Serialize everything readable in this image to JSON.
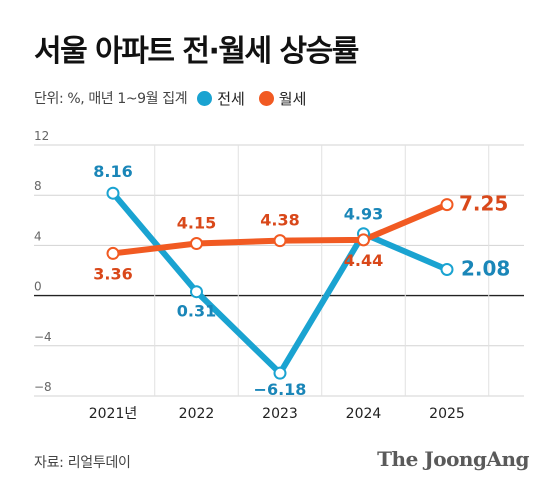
{
  "title": "서울 아파트 전·월세 상승률",
  "unit_note": "단위: %, 매년 1~9월 집계",
  "legend": [
    {
      "label": "전세",
      "color": "#1aa3d1"
    },
    {
      "label": "월세",
      "color": "#f15a22"
    }
  ],
  "source": "자료: 리얼투데이",
  "brand": "The JoongAng",
  "chart_data": {
    "type": "line",
    "title": "서울 아파트 전·월세 상승률",
    "categories": [
      "2021년",
      "2022",
      "2023",
      "2024",
      "2025"
    ],
    "y_ticks": [
      "12",
      "8",
      "4",
      "0",
      "−4",
      "−8"
    ],
    "ylim": [
      -8,
      12
    ],
    "grid": true,
    "legend_position": "top-left",
    "series": [
      {
        "name": "전세",
        "color": "#1aa3d1",
        "label_color": "#1a86b8",
        "values": [
          8.16,
          0.31,
          -6.18,
          4.93,
          2.08
        ],
        "labels": [
          "8.16",
          "0.31",
          "−6.18",
          "4.93",
          "2.08"
        ]
      },
      {
        "name": "월세",
        "color": "#f15a22",
        "label_color": "#d9481a",
        "values": [
          3.36,
          4.15,
          4.38,
          4.44,
          7.25
        ],
        "labels": [
          "3.36",
          "4.15",
          "4.38",
          "4.44",
          "7.25"
        ]
      }
    ]
  }
}
